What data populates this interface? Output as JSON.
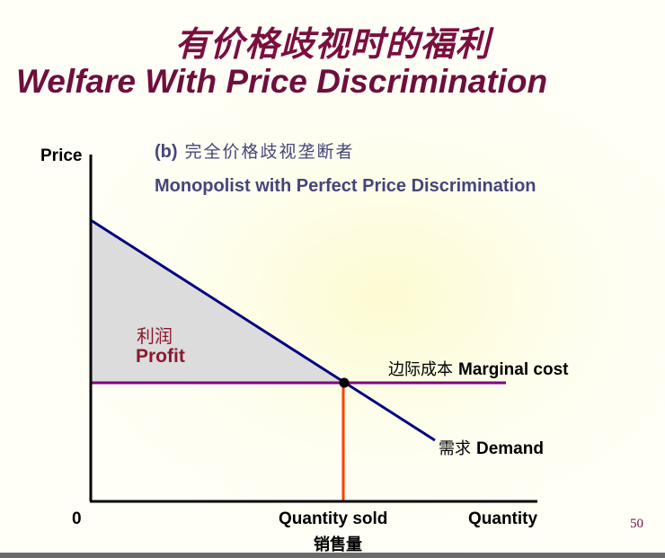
{
  "title_cn": "有价格歧视时的福利",
  "title_en": "Welfare With Price Discrimination",
  "subtitle_label": "(b)",
  "subtitle_cn": "完全价格歧视垄断者",
  "subtitle_en": "Monopolist with Perfect Price Discrimination",
  "axes": {
    "y_label": "Price",
    "x_label": "Quantity",
    "origin": "0"
  },
  "labels": {
    "profit_cn": "利润",
    "profit_en": "Profit",
    "mc_cn": "边际成本",
    "mc_en": "Marginal cost",
    "demand_cn": "需求",
    "demand_en": "Demand",
    "qsold_en": "Quantity sold",
    "qsold_cn": "销售量"
  },
  "page_number": "50",
  "colors": {
    "title": "#7a0f3e",
    "subtitle": "#45457a",
    "demand": "#000080",
    "marginal_cost": "#800080",
    "quantity_line": "#ff4000",
    "profit_fill": "#dcdcdc"
  }
}
